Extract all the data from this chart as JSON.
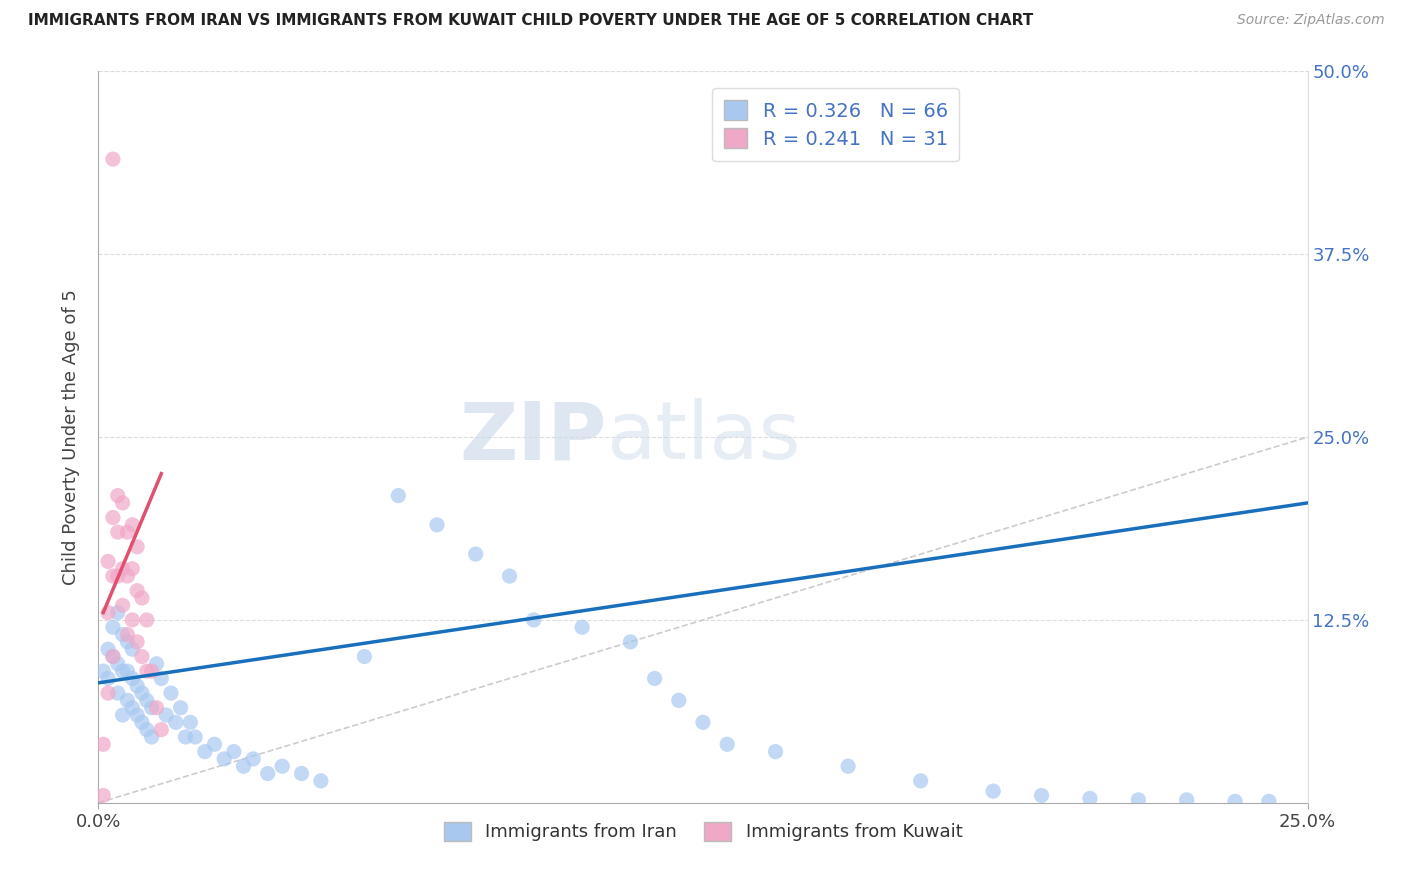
{
  "title": "IMMIGRANTS FROM IRAN VS IMMIGRANTS FROM KUWAIT CHILD POVERTY UNDER THE AGE OF 5 CORRELATION CHART",
  "source": "Source: ZipAtlas.com",
  "ylabel_label": "Child Poverty Under the Age of 5",
  "legend_bottom": [
    "Immigrants from Iran",
    "Immigrants from Kuwait"
  ],
  "iran_R": "0.326",
  "iran_N": "66",
  "kuwait_R": "0.241",
  "kuwait_N": "31",
  "iran_color": "#a8c8f0",
  "iran_line_color": "#1a6fbd",
  "kuwait_color": "#f0a8c8",
  "kuwait_line_color": "#e05070",
  "watermark_zip": "ZIP",
  "watermark_atlas": "atlas",
  "xlim": [
    0.0,
    0.25
  ],
  "ylim": [
    0.0,
    0.5
  ],
  "iran_scatter_x": [
    0.001,
    0.002,
    0.002,
    0.003,
    0.003,
    0.004,
    0.004,
    0.004,
    0.005,
    0.005,
    0.005,
    0.006,
    0.006,
    0.006,
    0.007,
    0.007,
    0.007,
    0.008,
    0.008,
    0.009,
    0.009,
    0.01,
    0.01,
    0.011,
    0.011,
    0.012,
    0.013,
    0.014,
    0.015,
    0.016,
    0.017,
    0.018,
    0.019,
    0.02,
    0.022,
    0.024,
    0.026,
    0.028,
    0.03,
    0.032,
    0.035,
    0.038,
    0.042,
    0.046,
    0.055,
    0.062,
    0.07,
    0.078,
    0.085,
    0.09,
    0.1,
    0.11,
    0.115,
    0.12,
    0.125,
    0.13,
    0.14,
    0.155,
    0.17,
    0.185,
    0.195,
    0.205,
    0.215,
    0.225,
    0.235,
    0.242
  ],
  "iran_scatter_y": [
    0.09,
    0.085,
    0.105,
    0.1,
    0.12,
    0.075,
    0.095,
    0.13,
    0.06,
    0.09,
    0.115,
    0.07,
    0.09,
    0.11,
    0.065,
    0.085,
    0.105,
    0.06,
    0.08,
    0.055,
    0.075,
    0.05,
    0.07,
    0.045,
    0.065,
    0.095,
    0.085,
    0.06,
    0.075,
    0.055,
    0.065,
    0.045,
    0.055,
    0.045,
    0.035,
    0.04,
    0.03,
    0.035,
    0.025,
    0.03,
    0.02,
    0.025,
    0.02,
    0.015,
    0.1,
    0.21,
    0.19,
    0.17,
    0.155,
    0.125,
    0.12,
    0.11,
    0.085,
    0.07,
    0.055,
    0.04,
    0.035,
    0.025,
    0.015,
    0.008,
    0.005,
    0.003,
    0.002,
    0.002,
    0.001,
    0.001
  ],
  "kuwait_scatter_x": [
    0.001,
    0.001,
    0.002,
    0.002,
    0.002,
    0.003,
    0.003,
    0.003,
    0.003,
    0.004,
    0.004,
    0.004,
    0.005,
    0.005,
    0.005,
    0.006,
    0.006,
    0.006,
    0.007,
    0.007,
    0.007,
    0.008,
    0.008,
    0.008,
    0.009,
    0.009,
    0.01,
    0.01,
    0.011,
    0.012,
    0.013
  ],
  "kuwait_scatter_y": [
    0.005,
    0.04,
    0.075,
    0.13,
    0.165,
    0.1,
    0.155,
    0.195,
    0.44,
    0.155,
    0.185,
    0.21,
    0.135,
    0.16,
    0.205,
    0.115,
    0.155,
    0.185,
    0.125,
    0.16,
    0.19,
    0.11,
    0.145,
    0.175,
    0.1,
    0.14,
    0.09,
    0.125,
    0.09,
    0.065,
    0.05
  ],
  "diag_line_color": "#cccccc",
  "background_color": "#ffffff",
  "iran_line_x": [
    0.0,
    0.25
  ],
  "iran_line_y": [
    0.082,
    0.205
  ],
  "kuwait_line_x": [
    0.001,
    0.013
  ],
  "kuwait_line_y": [
    0.13,
    0.225
  ]
}
